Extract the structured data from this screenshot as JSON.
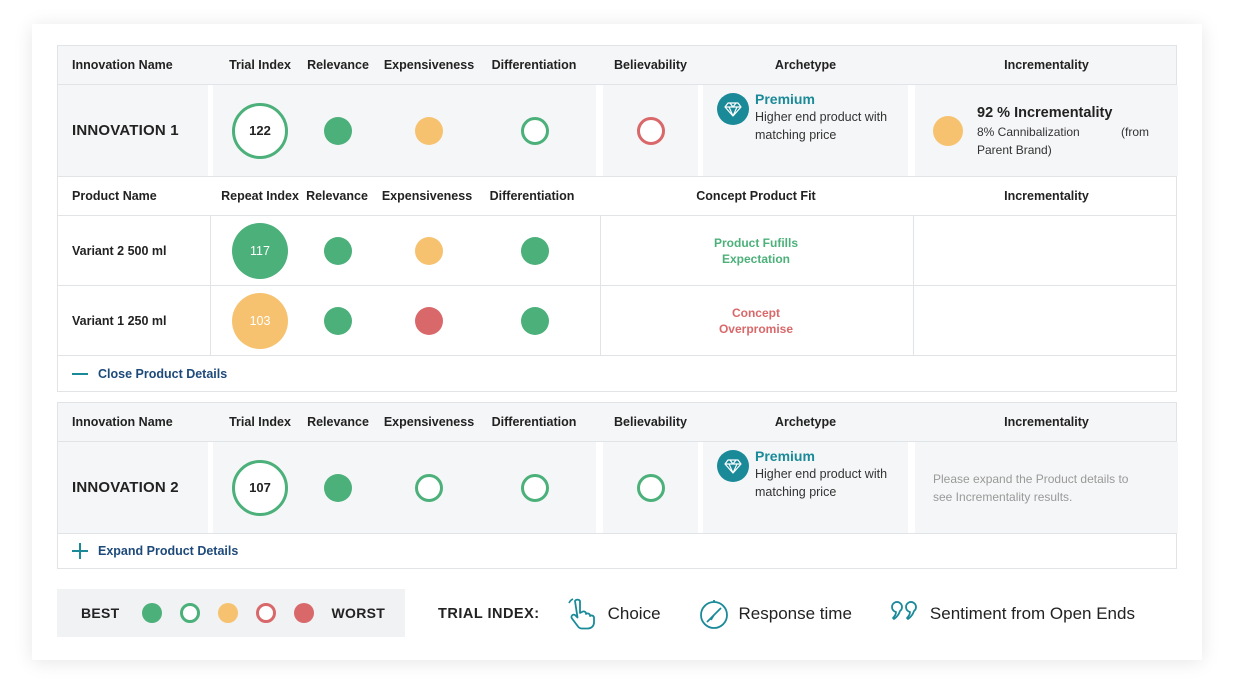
{
  "block1": {
    "header": {
      "innovation_name": "Innovation Name",
      "trial_index": "Trial Index",
      "relevance": "Relevance",
      "expensiveness": "Expensiveness",
      "differentiation": "Differentiation",
      "believability": "Believability",
      "archetype": "Archetype",
      "incrementality": "Incrementality"
    },
    "innovation": {
      "name": "INNOVATION 1",
      "trial_index": "122",
      "relevance": "green-filled",
      "expensiveness": "amber-filled",
      "differentiation": "green-ring",
      "believability": "red-ring",
      "archetype_title": "Premium",
      "archetype_desc_1": "Higher end product with",
      "archetype_desc_2": "matching price",
      "incrementality_title": "92 % Incrementality",
      "incrementality_sub_1": "8% Cannibalization",
      "incrementality_sub_1b": "(from",
      "incrementality_sub_2": "Parent Brand)"
    },
    "product_header": {
      "product_name": "Product Name",
      "repeat_index": "Repeat Index",
      "relevance": "Relevance",
      "expensiveness": "Expensiveness",
      "differentiation": "Differentiation",
      "concept_product_fit": "Concept Product Fit",
      "incrementality": "Incrementality"
    },
    "products": [
      {
        "name": "Variant 2 500 ml",
        "repeat_index": "117",
        "fit_1": "Product Fufills",
        "fit_2": "Expectation"
      },
      {
        "name": "Variant 1 250 ml",
        "repeat_index": "103",
        "fit_1": "Concept",
        "fit_2": "Overpromise"
      }
    ],
    "toggle_label": "Close Product Details"
  },
  "block2": {
    "header": {
      "innovation_name": "Innovation Name",
      "trial_index": "Trial Index",
      "relevance": "Relevance",
      "expensiveness": "Expensiveness",
      "differentiation": "Differentiation",
      "believability": "Believability",
      "archetype": "Archetype",
      "incrementality": "Incrementality"
    },
    "innovation": {
      "name": "INNOVATION 2",
      "trial_index": "107",
      "archetype_title": "Premium",
      "archetype_desc_1": "Higher end product with",
      "archetype_desc_2": "matching price",
      "incrementality_note_1": "Please expand the Product details to",
      "incrementality_note_2": "see Incrementality results."
    },
    "toggle_label": "Expand Product Details"
  },
  "legend": {
    "best": "BEST",
    "worst": "WORST"
  },
  "trial_index": {
    "label": "TRIAL INDEX:",
    "items": [
      "Choice",
      "Response time",
      "Sentiment from Open Ends"
    ]
  },
  "colors": {
    "green": "#4cb07a",
    "amber": "#f6c26f",
    "red": "#d9686a",
    "teal": "#1a8a99",
    "navy": "#1e4a7a"
  }
}
